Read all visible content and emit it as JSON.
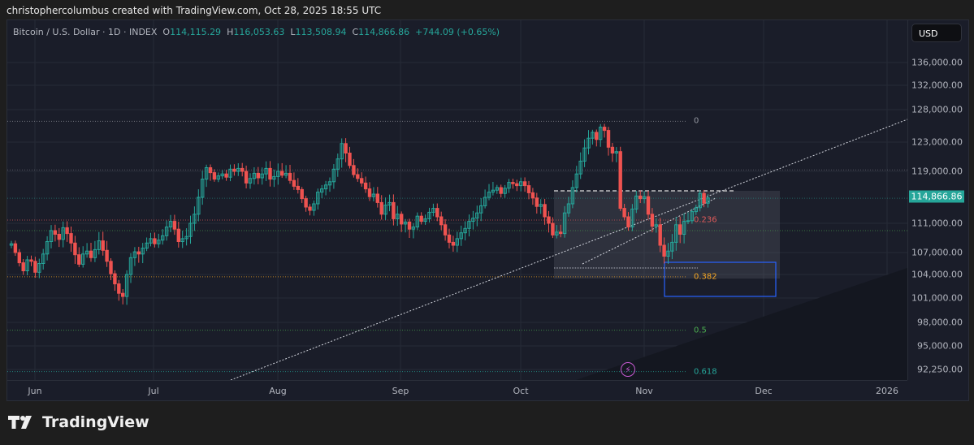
{
  "header": {
    "credit": "christophercolumbus created with TradingView.com, Oct 28, 2025 18:55 UTC"
  },
  "legend": {
    "symbol": "Bitcoin / U.S. Dollar · 1D · INDEX",
    "o_label": "O",
    "o": "114,115.29",
    "h_label": "H",
    "h": "116,053.63",
    "l_label": "L",
    "l": "113,508.94",
    "c_label": "C",
    "c": "114,866.86",
    "change": "+744.09 (+0.65%)"
  },
  "currency_button": "USD",
  "brand": "TradingView",
  "colors": {
    "up": "#26a69a",
    "down": "#ef5350",
    "background": "#1a1d29",
    "fib_0": "#9598a1",
    "fib_0236": "#e05a5a",
    "fib_0382": "#f5a623",
    "fib_05": "#4caf50",
    "fib_0618": "#26a69a",
    "target_box": "#2962ff"
  },
  "chart_data": {
    "type": "candlestick",
    "title": "Bitcoin / U.S. Dollar · 1D · INDEX",
    "xlabel": "",
    "ylabel": "USD",
    "x_ticks": [
      "Jun",
      "Jul",
      "Aug",
      "Sep",
      "Oct",
      "Nov",
      "Dec",
      "2026"
    ],
    "y_ticks": [
      "136,000.00",
      "132,000.00",
      "128,000.00",
      "123,000.00",
      "119,000.00",
      "111,000.00",
      "107,000.00",
      "104,000.00",
      "101,000.00",
      "98,000.00",
      "95,000.00",
      "92,250.00"
    ],
    "ylim": [
      91500,
      139500
    ],
    "last_price": "114,866.86",
    "ohlc_last": {
      "open": 114115.29,
      "high": 116053.63,
      "low": 113508.94,
      "close": 114866.86,
      "change": 744.09,
      "change_pct": 0.65
    },
    "fib_levels": [
      {
        "ratio": "0",
        "price": 126200
      },
      {
        "ratio": "0.236",
        "price": 111500
      },
      {
        "ratio": "0.382",
        "price": 103700
      },
      {
        "ratio": "0.5",
        "price": 97000
      },
      {
        "ratio": "0.618",
        "price": 92000
      }
    ],
    "annotations": [
      "ascending trendline",
      "rising wedge channel",
      "consolidation rectangle",
      "blue target box near 0.382",
      "resistance dashed line ~116,000"
    ],
    "approx_closes_monthly": {
      "Jun": 107000,
      "Jul": 118000,
      "Aug": 110000,
      "Sep": 114000,
      "Oct_peak": 126000,
      "Oct_low": 104000,
      "Oct_28": 114866.86
    }
  }
}
